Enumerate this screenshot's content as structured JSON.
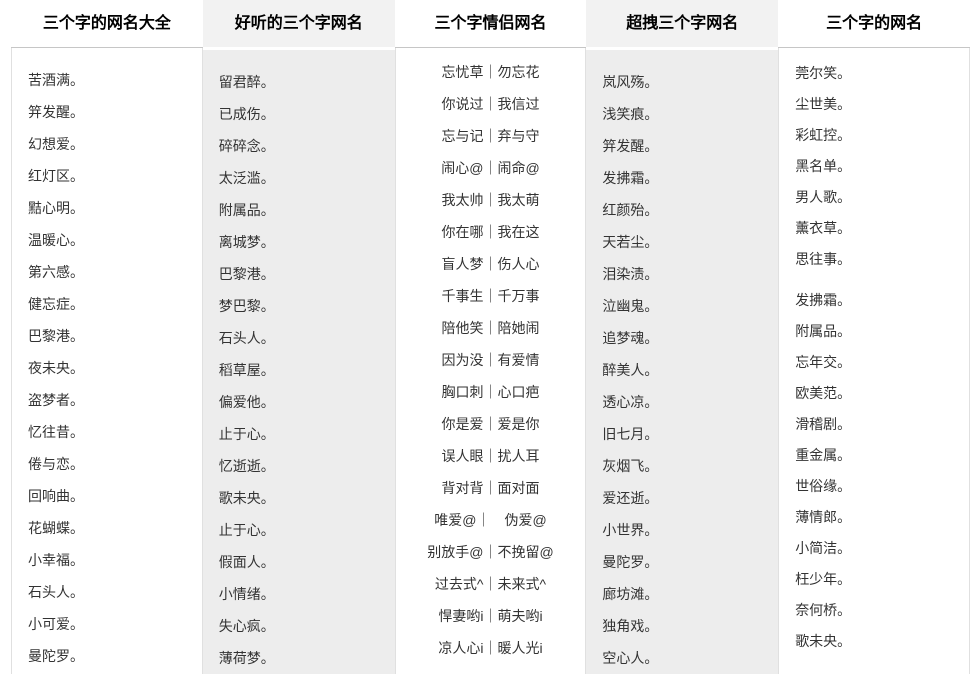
{
  "page": {
    "colors": {
      "background": "#ffffff",
      "shaded_column_header": "#f2f2f2",
      "shaded_column_body": "#ededed",
      "header_divider": "#c6c6c6",
      "column_border": "#e0e0e0",
      "title_text": "#000000",
      "item_text": "#333333"
    }
  },
  "columns": [
    {
      "title": "三个字的网名大全",
      "items": [
        "苦酒满。",
        "笄发醒。",
        "幻想爱。",
        "红灯区。",
        "黠心明。",
        "温暖心。",
        "第六感。",
        "健忘症。",
        "巴黎港。",
        "夜未央。",
        "盗梦者。",
        "忆往昔。",
        "倦与恋。",
        "回响曲。",
        "花蝴蝶。",
        "小幸福。",
        "石头人。",
        "小可爱。",
        "曼陀罗。"
      ]
    },
    {
      "title": "好听的三个字网名",
      "items": [
        "留君醉。",
        "已成伤。",
        "碎碎念。",
        "太泛滥。",
        "附属品。",
        "离城梦。",
        "巴黎港。",
        "梦巴黎。",
        "石头人。",
        "稻草屋。",
        "偏爱他。",
        "止于心。",
        "忆逝逝。",
        "歌未央。",
        "止于心。",
        "假面人。",
        "小情绪。",
        "失心疯。",
        "薄荷梦。"
      ]
    },
    {
      "title": "三个字情侣网名",
      "items": [
        "忘忧草｜勿忘花",
        "你说过｜我信过",
        "忘与记｜弃与守",
        "闹心@｜闹命@",
        "我太帅｜我太萌",
        "你在哪｜我在这",
        "盲人梦｜伤人心",
        "千事生｜千万事",
        "陪他笑｜陪她闹",
        "因为没｜有爱情",
        "胸口刺｜心口疤",
        "你是爱｜爱是你",
        "误人眼｜扰人耳",
        "背对背｜面对面",
        "唯爱@｜　伪爱@",
        "别放手@｜不挽留@",
        "过去式^｜未来式^",
        "悍妻哟i｜萌夫哟i",
        "凉人心i｜暖人光i"
      ]
    },
    {
      "title": "超拽三个字网名",
      "items": [
        "岚风殇。",
        "浅笑痕。",
        "笄发醒。",
        "发拂霜。",
        "红颜殆。",
        "天若尘。",
        "泪染渍。",
        "泣幽鬼。",
        "追梦魂。",
        "醉美人。",
        "透心凉。",
        "旧七月。",
        "灰烟飞。",
        "爱还逝。",
        "小世界。",
        "曼陀罗。",
        "廊坊滩。",
        "独角戏。",
        "空心人。"
      ]
    },
    {
      "title": "三个字的网名",
      "items": [
        "莞尔笑。",
        "尘世美。",
        "彩虹控。",
        "黑名单。",
        "男人歌。",
        "薰衣草。",
        "思往事。",
        "发拂霜。",
        "附属品。",
        "忘年交。",
        "欧美范。",
        "滑稽剧。",
        "重金属。",
        "世俗缘。",
        "薄情郎。",
        "小简洁。",
        "枉少年。",
        "奈何桥。",
        "歌未央。"
      ]
    }
  ]
}
